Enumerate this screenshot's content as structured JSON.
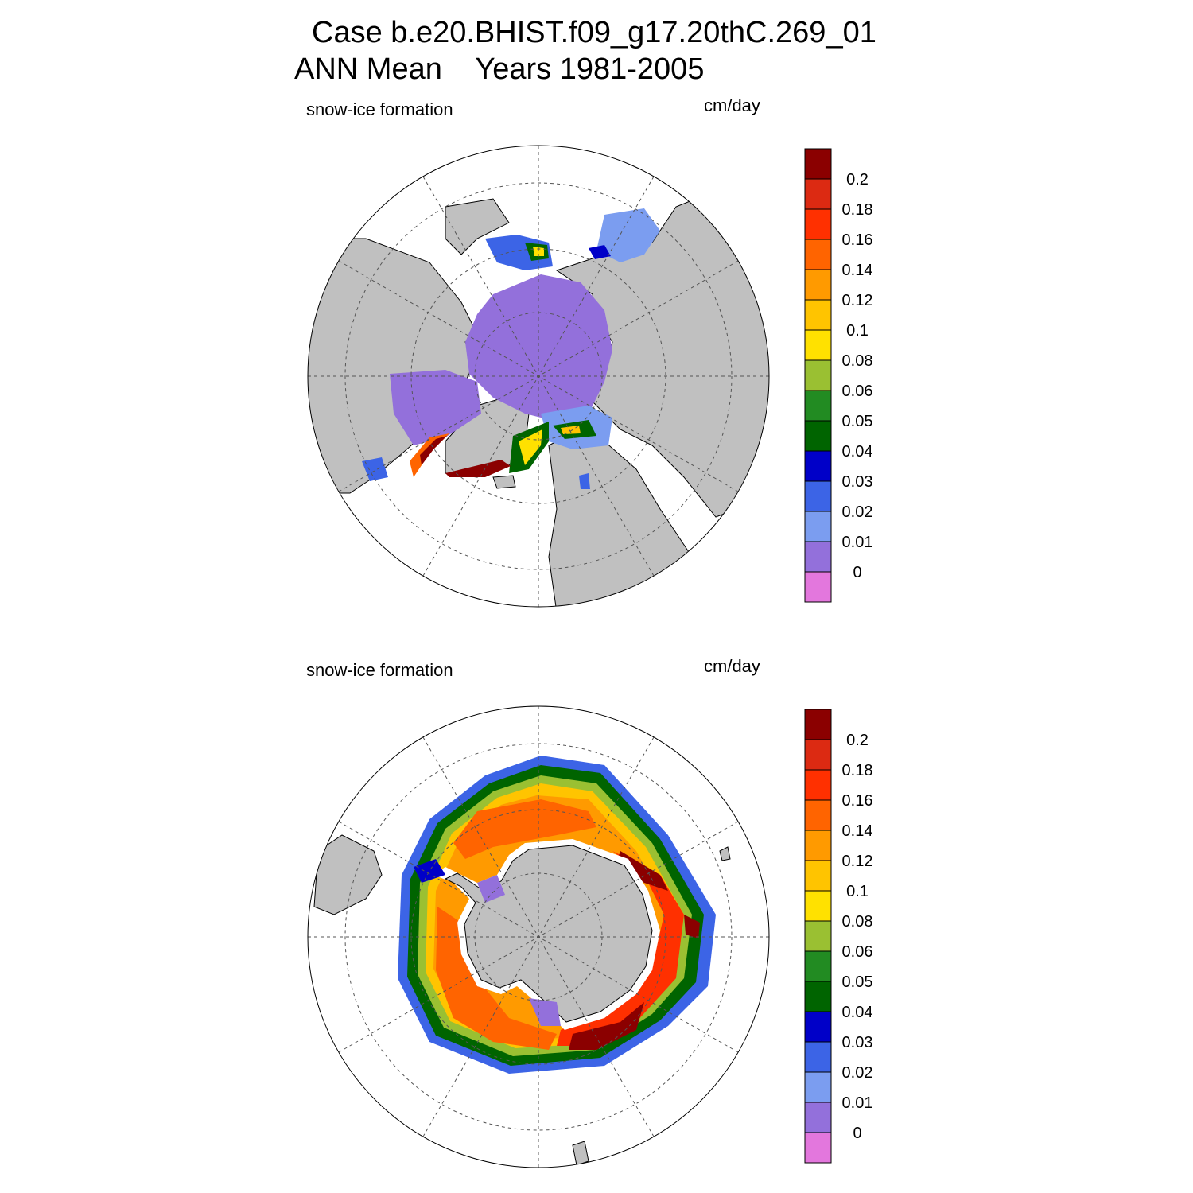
{
  "header": {
    "line1": "Case b.e20.BHIST.f09_g17.20thC.269_01",
    "line2": "ANN Mean    Years 1981-2005"
  },
  "colorbar": {
    "colors": [
      "#e377dd",
      "#9370db",
      "#7b9df0",
      "#3c64e6",
      "#0000c8",
      "#006400",
      "#228b22",
      "#9ac032",
      "#ffe100",
      "#ffc400",
      "#ff9a00",
      "#ff6400",
      "#ff3000",
      "#dc2a12",
      "#8b0000"
    ],
    "ticks": [
      "0",
      "0.01",
      "0.02",
      "0.03",
      "0.04",
      "0.05",
      "0.06",
      "0.08",
      "0.1",
      "0.12",
      "0.14",
      "0.16",
      "0.18",
      "0.2"
    ]
  },
  "panels": [
    {
      "id": "nh",
      "hemisphere": "north",
      "variable": "snow-ice formation",
      "units": "cm/day"
    },
    {
      "id": "sh",
      "hemisphere": "south",
      "variable": "snow-ice formation",
      "units": "cm/day"
    }
  ],
  "colors": {
    "land": "#c0c0c0",
    "ocean": "#ffffff",
    "grid": "#666666"
  }
}
